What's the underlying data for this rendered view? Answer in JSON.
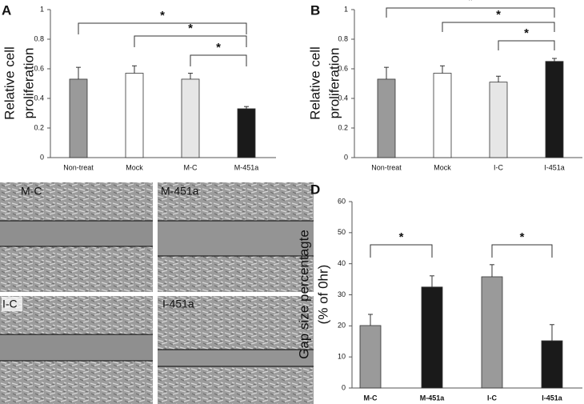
{
  "chart_data": [
    {
      "type": "bar",
      "panel": "A",
      "ylabel": [
        "Relative cell",
        "proliferation"
      ],
      "categories": [
        "Non-treat",
        "Mock",
        "M-C",
        "M-451a"
      ],
      "values": [
        0.53,
        0.57,
        0.53,
        0.33
      ],
      "errors": [
        0.08,
        0.05,
        0.04,
        0.015
      ],
      "colors": [
        "#9a9a9a",
        "#ffffff",
        "#e6e6e6",
        "#1a1a1a"
      ],
      "ylim": [
        0,
        1
      ],
      "yticks": [
        0,
        0.2,
        0.4,
        0.6,
        0.8,
        1
      ],
      "significance": [
        {
          "from": 0,
          "to": 3,
          "label": "*"
        },
        {
          "from": 1,
          "to": 3,
          "label": "*"
        },
        {
          "from": 2,
          "to": 3,
          "label": "*"
        }
      ]
    },
    {
      "type": "bar",
      "panel": "B",
      "ylabel": [
        "Relative cell",
        "proliferation"
      ],
      "categories": [
        "Non-treat",
        "Mock",
        "I-C",
        "I-451a"
      ],
      "values": [
        0.53,
        0.57,
        0.51,
        0.65
      ],
      "errors": [
        0.08,
        0.05,
        0.04,
        0.02
      ],
      "colors": [
        "#9a9a9a",
        "#ffffff",
        "#e6e6e6",
        "#1a1a1a"
      ],
      "ylim": [
        0,
        1
      ],
      "yticks": [
        0,
        0.2,
        0.4,
        0.6,
        0.8,
        1
      ],
      "significance": [
        {
          "from": 0,
          "to": 3,
          "label": "*"
        },
        {
          "from": 1,
          "to": 3,
          "label": "*"
        },
        {
          "from": 2,
          "to": 3,
          "label": "*"
        }
      ]
    },
    {
      "type": "bar",
      "panel": "D",
      "ylabel": [
        "Gap size percentagte",
        "(% of 0hr)"
      ],
      "categories": [
        "M-C",
        "M-451a",
        "I-C",
        "I-451a"
      ],
      "values": [
        20.1,
        32.5,
        35.8,
        15.2
      ],
      "errors": [
        3.6,
        3.6,
        3.9,
        5.2
      ],
      "colors": [
        "#9a9a9a",
        "#1a1a1a",
        "#9a9a9a",
        "#1a1a1a"
      ],
      "ylim": [
        0,
        60
      ],
      "yticks": [
        0,
        10,
        20,
        30,
        40,
        50,
        60
      ],
      "significance": [
        {
          "from": 0,
          "to": 1,
          "label": "*"
        },
        {
          "from": 2,
          "to": 3,
          "label": "*"
        }
      ]
    }
  ],
  "images": {
    "panel": "C",
    "labels": [
      "M-C",
      "M-451a",
      "I-C",
      "I-451a"
    ]
  }
}
